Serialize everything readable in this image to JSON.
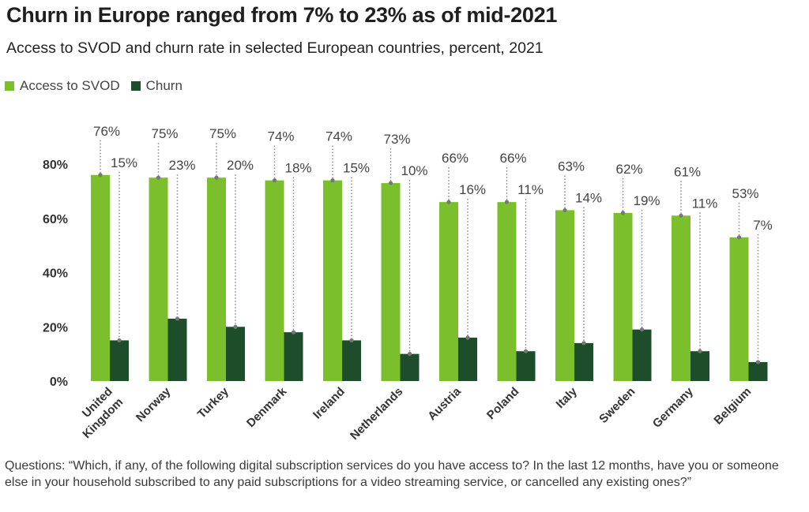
{
  "title": "Churn in Europe ranged from 7% to 23% as of mid-2021",
  "subtitle": "Access to SVOD and churn rate in selected European countries, percent, 2021",
  "legend": {
    "svod_label": "Access to SVOD",
    "churn_label": "Churn"
  },
  "colors": {
    "svod": "#7cbf2d",
    "churn": "#1e4d2b",
    "dot": "#777777",
    "axis_text": "#333333"
  },
  "footnote": "Questions: “Which, if any, of the following digital subscription services do you have access to? In the last 12 months, have you or someone else in your household subscribed to any paid subscriptions for a video streaming service, or cancelled any existing ones?”",
  "chart_data": {
    "type": "bar",
    "categories": [
      "United Kingdom",
      "Norway",
      "Turkey",
      "Denmark",
      "Ireland",
      "Netherlands",
      "Austria",
      "Poland",
      "Italy",
      "Sweden",
      "Germany",
      "Belgium"
    ],
    "series": [
      {
        "name": "Access to SVOD",
        "values": [
          76,
          75,
          75,
          74,
          74,
          73,
          66,
          66,
          63,
          62,
          61,
          53
        ]
      },
      {
        "name": "Churn",
        "values": [
          15,
          23,
          20,
          18,
          15,
          10,
          16,
          11,
          14,
          19,
          11,
          7
        ]
      }
    ],
    "value_labels": {
      "svod": [
        "76%",
        "75%",
        "75%",
        "74%",
        "74%",
        "73%",
        "66%",
        "66%",
        "63%",
        "62%",
        "61%",
        "53%"
      ],
      "churn": [
        "15%",
        "23%",
        "20%",
        "18%",
        "15%",
        "10%",
        "16%",
        "11%",
        "14%",
        "19%",
        "11%",
        "7%"
      ]
    },
    "yticks": [
      "0%",
      "20%",
      "40%",
      "60%",
      "80%"
    ],
    "ytick_values": [
      0,
      20,
      40,
      60,
      80
    ],
    "ylim": [
      0,
      80
    ],
    "grid": false,
    "legend_position": "top-left"
  }
}
